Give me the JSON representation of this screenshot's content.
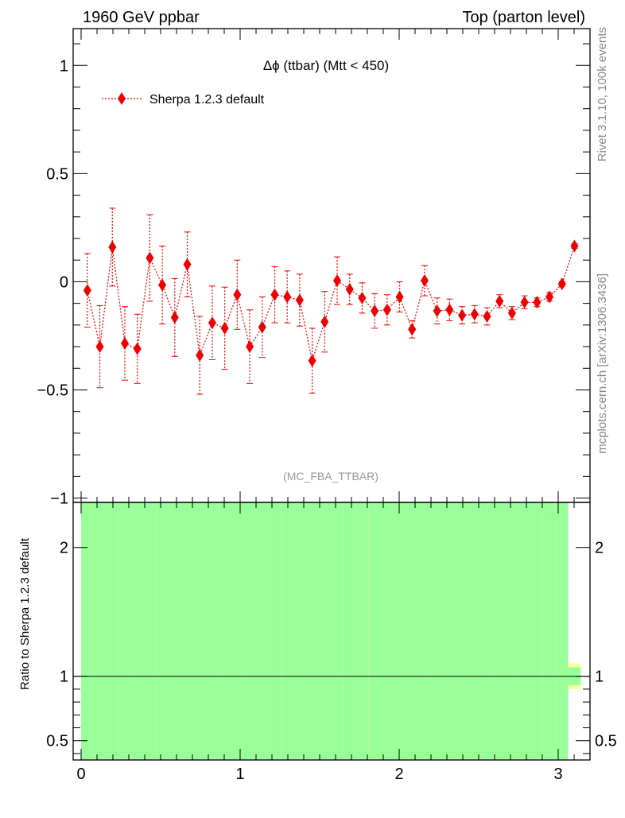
{
  "header": {
    "left_title": "1960 GeV ppbar",
    "right_title": "Top (parton level)"
  },
  "side_labels": {
    "rivet": "Rivet 3.1.10,  100k events",
    "mcplots": "mcplots.cern.ch [arXiv:1306.3436]"
  },
  "colors": {
    "series": "#ee0000",
    "band_inner": "#99ff99",
    "band_outer": "#ffff99",
    "axis": "#000000",
    "watermark": "#999999"
  },
  "chart_data": [
    {
      "type": "line",
      "title": "Δϕ (ttbar) (Mtt < 450)",
      "watermark": "(MC_FBA_TTBAR)",
      "xlabel": "",
      "ylabel": "",
      "xlim": [
        -0.05,
        3.2
      ],
      "ylim": [
        -1.02,
        1.17
      ],
      "yticks": [
        -1,
        -0.5,
        0,
        0.5,
        1
      ],
      "ytick_labels": [
        "−1",
        "−0.5",
        "0",
        "0.5",
        "1"
      ],
      "legend": "top-left",
      "series": [
        {
          "name": "Sherpa 1.2.3 default",
          "marker": "diamond",
          "linestyle": "dotted",
          "x": [
            0.0393,
            0.1178,
            0.1963,
            0.2749,
            0.3534,
            0.432,
            0.5105,
            0.589,
            0.6676,
            0.7461,
            0.8247,
            0.9032,
            0.9817,
            1.0603,
            1.1388,
            1.2174,
            1.2959,
            1.3744,
            1.453,
            1.5315,
            1.6101,
            1.6886,
            1.7671,
            1.8457,
            1.9242,
            2.0028,
            2.0813,
            2.1598,
            2.2384,
            2.3169,
            2.3955,
            2.474,
            2.5525,
            2.6311,
            2.7096,
            2.7882,
            2.8667,
            2.9452,
            3.0238,
            3.1023
          ],
          "y": [
            -0.04,
            -0.3,
            0.16,
            -0.285,
            -0.31,
            0.11,
            -0.015,
            -0.165,
            0.08,
            -0.34,
            -0.19,
            -0.215,
            -0.06,
            -0.3,
            -0.21,
            -0.06,
            -0.07,
            -0.085,
            -0.365,
            -0.185,
            0.005,
            -0.035,
            -0.075,
            -0.135,
            -0.13,
            -0.07,
            -0.22,
            0.005,
            -0.135,
            -0.13,
            -0.155,
            -0.15,
            -0.16,
            -0.09,
            -0.145,
            -0.095,
            -0.095,
            -0.07,
            -0.01,
            0.165
          ],
          "yerr": [
            0.17,
            0.19,
            0.18,
            0.17,
            0.16,
            0.2,
            0.18,
            0.18,
            0.15,
            0.18,
            0.17,
            0.19,
            0.16,
            0.17,
            0.14,
            0.13,
            0.12,
            0.12,
            0.15,
            0.14,
            0.11,
            0.07,
            0.07,
            0.08,
            0.07,
            0.07,
            0.04,
            0.07,
            0.06,
            0.05,
            0.04,
            0.04,
            0.04,
            0.03,
            0.03,
            0.03,
            0.02,
            0.02,
            0.01,
            0.01
          ]
        }
      ]
    },
    {
      "type": "bar",
      "title": "",
      "xlabel": "",
      "ylabel": "Ratio to Sherpa 1.2.3 default",
      "xlim": [
        -0.05,
        3.2
      ],
      "ylim": [
        0.35,
        2.35
      ],
      "xticks": [
        0,
        1,
        2,
        3
      ],
      "xtick_labels": [
        "0",
        "1",
        "2",
        "3"
      ],
      "yticks": [
        0.5,
        1,
        2
      ],
      "ytick_labels": [
        "0.5",
        "1",
        "2"
      ],
      "reference_line": 1,
      "series": [
        {
          "name": "",
          "x": [
            0.0393,
            0.1178,
            0.1963,
            0.2749,
            0.3534,
            0.432,
            0.5105,
            0.589,
            0.6676,
            0.7461,
            0.8247,
            0.9032,
            0.9817,
            1.0603,
            1.1388,
            1.2174,
            1.2959,
            1.3744,
            1.453,
            1.5315,
            1.6101,
            1.6886,
            1.7671,
            1.8457,
            1.9242,
            2.0028,
            2.0813,
            2.1598,
            2.2384,
            2.3169,
            2.3955,
            2.474,
            2.5525,
            2.6311,
            2.7096,
            2.7882,
            2.8667,
            2.9452,
            3.0238,
            3.1023
          ],
          "inner_lo": [
            0.35,
            0.35,
            0.35,
            0.35,
            0.35,
            0.35,
            0.35,
            0.35,
            0.35,
            0.35,
            0.35,
            0.35,
            0.35,
            0.35,
            0.35,
            0.35,
            0.35,
            0.35,
            0.35,
            0.35,
            0.35,
            0.35,
            0.35,
            0.35,
            0.35,
            0.35,
            0.35,
            0.35,
            0.35,
            0.35,
            0.35,
            0.35,
            0.35,
            0.35,
            0.35,
            0.35,
            0.35,
            0.35,
            0.35,
            0.93
          ],
          "inner_hi": [
            2.35,
            2.35,
            2.35,
            2.35,
            2.35,
            2.35,
            2.35,
            2.35,
            2.35,
            2.35,
            2.35,
            2.35,
            2.35,
            2.35,
            2.35,
            2.35,
            2.35,
            2.35,
            2.35,
            2.35,
            2.35,
            2.35,
            2.35,
            2.35,
            2.35,
            2.35,
            2.35,
            2.35,
            2.35,
            2.35,
            2.35,
            2.35,
            2.35,
            2.35,
            2.35,
            2.35,
            2.35,
            2.35,
            2.35,
            1.07
          ],
          "outer_lo": [
            0.35,
            0.35,
            0.35,
            0.35,
            0.35,
            0.35,
            0.35,
            0.35,
            0.35,
            0.35,
            0.35,
            0.35,
            0.35,
            0.35,
            0.35,
            0.35,
            0.35,
            0.35,
            0.35,
            0.35,
            0.35,
            0.35,
            0.35,
            0.35,
            0.35,
            0.35,
            0.35,
            0.35,
            0.35,
            0.35,
            0.35,
            0.35,
            0.35,
            0.35,
            0.35,
            0.35,
            0.35,
            0.35,
            0.35,
            0.9
          ],
          "outer_hi": [
            2.35,
            2.35,
            2.35,
            2.35,
            2.35,
            2.35,
            2.35,
            2.35,
            2.35,
            2.35,
            2.35,
            2.35,
            2.35,
            2.35,
            2.35,
            2.35,
            2.35,
            2.35,
            2.35,
            2.35,
            2.35,
            2.35,
            2.35,
            2.35,
            2.35,
            2.35,
            2.35,
            2.35,
            2.35,
            2.35,
            2.35,
            2.35,
            2.35,
            2.35,
            2.35,
            2.35,
            2.35,
            2.35,
            2.35,
            1.1
          ]
        }
      ]
    }
  ]
}
